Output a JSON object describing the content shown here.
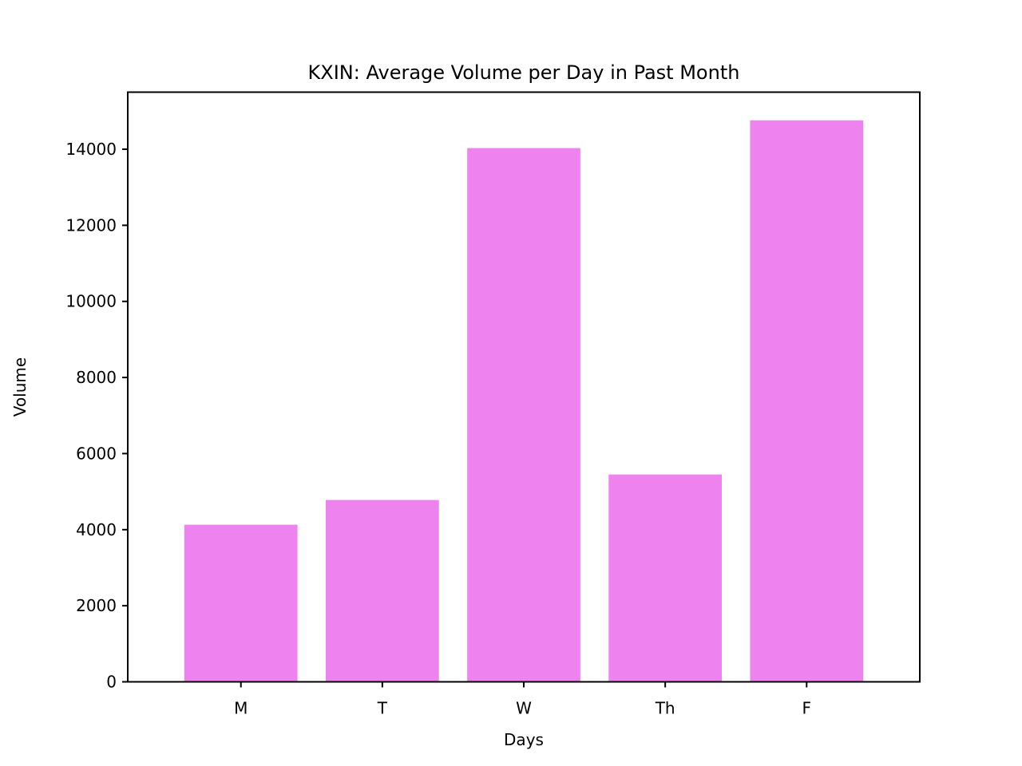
{
  "chart_data": {
    "type": "bar",
    "title": "KXIN: Average Volume per Day in Past Month",
    "xlabel": "Days",
    "ylabel": "Volume",
    "categories": [
      "M",
      "T",
      "W",
      "Th",
      "F"
    ],
    "values": [
      4130,
      4780,
      14030,
      5450,
      14760
    ],
    "ylim": [
      0,
      15500
    ],
    "yticks": [
      0,
      2000,
      4000,
      6000,
      8000,
      10000,
      12000,
      14000
    ],
    "grid": false,
    "bar_color": "#ee82ee"
  }
}
